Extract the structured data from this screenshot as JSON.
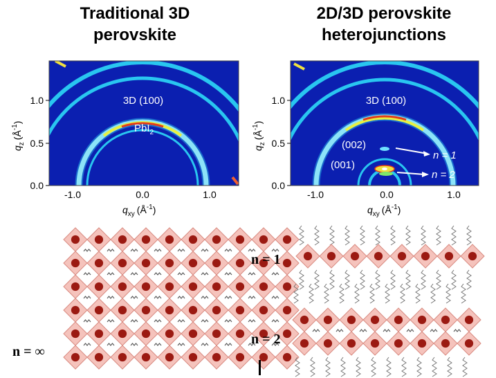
{
  "left_panel": {
    "title_line1": "Traditional 3D",
    "title_line2": "perovskite",
    "ring_label": "3D (100)",
    "pbi_label": "PbI",
    "pbi_sub": "2",
    "n_label": "n = ∞",
    "x_ticks": [
      "-1.0",
      "0.0",
      "1.0"
    ],
    "y_ticks": [
      "0.0",
      "0.5",
      "1.0"
    ],
    "xlabel_q": "q",
    "xlabel_sub": "xy",
    "xlabel_unit": "(Å",
    "xlabel_exp": "-1",
    "xlabel_close": ")",
    "ylabel_q": "q",
    "ylabel_sub": "z",
    "ylabel_unit": "(Å",
    "ylabel_exp": "-1",
    "ylabel_close": ")"
  },
  "right_panel": {
    "title_line1": "2D/3D perovskite",
    "title_line2": "heterojunctions",
    "ring_label": "3D (100)",
    "label_002": "(002)",
    "label_001": "(001)",
    "arrow_n1": "n = 1",
    "arrow_n2": "n = 2",
    "n1_label": "n = 1",
    "n2_label": "n = 2",
    "x_ticks": [
      "-1.0",
      "0.0",
      "1.0"
    ],
    "y_ticks": [
      "0.0",
      "0.5",
      "1.0"
    ],
    "xlabel_q": "q",
    "xlabel_sub": "xy",
    "xlabel_unit": "(Å",
    "xlabel_exp": "-1",
    "xlabel_close": ")",
    "ylabel_q": "q",
    "ylabel_sub": "z",
    "ylabel_unit": "(Å",
    "ylabel_exp": "-1",
    "ylabel_close": ")"
  },
  "colors": {
    "background": "#0b1fb0",
    "ring": "#29c6f0",
    "octahedron": "#f3b8b0",
    "octahedron_edge": "#d98a80",
    "atom": "#9b1a12",
    "organic": "#555555"
  }
}
